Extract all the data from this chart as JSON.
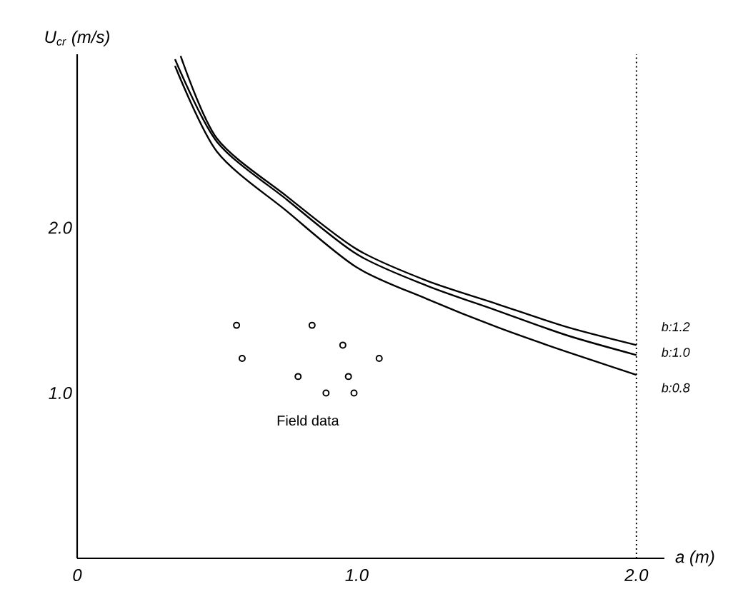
{
  "chart_data": {
    "type": "line",
    "xlabel": "a (m)",
    "ylabel": "U$_{cr}$ (m/s)",
    "xlim": [
      0,
      2.1
    ],
    "ylim": [
      0,
      3.05
    ],
    "xticks": [
      {
        "value": 0,
        "label": "0"
      },
      {
        "value": 1.0,
        "label": "1.0"
      },
      {
        "value": 2.0,
        "label": "2.0"
      }
    ],
    "yticks": [
      {
        "value": 1.0,
        "label": "1.0"
      },
      {
        "value": 2.0,
        "label": "2.0"
      }
    ],
    "series": [
      {
        "name": "b:1.2",
        "color": "#000000",
        "x": [
          0.37,
          0.5,
          0.75,
          1.0,
          1.25,
          1.5,
          1.75,
          2.0
        ],
        "values": [
          3.04,
          2.54,
          2.19,
          1.87,
          1.68,
          1.54,
          1.4,
          1.29
        ]
      },
      {
        "name": "b:1.0",
        "color": "#000000",
        "x": [
          0.35,
          0.5,
          0.75,
          1.0,
          1.25,
          1.5,
          1.75,
          2.0
        ],
        "values": [
          3.02,
          2.52,
          2.17,
          1.84,
          1.65,
          1.5,
          1.35,
          1.23
        ]
      },
      {
        "name": "b:0.8",
        "color": "#000000",
        "x": [
          0.35,
          0.5,
          0.75,
          1.0,
          1.25,
          1.5,
          1.75,
          2.0
        ],
        "values": [
          2.98,
          2.46,
          2.1,
          1.76,
          1.57,
          1.4,
          1.25,
          1.11
        ]
      },
      {
        "name": "Field data",
        "type": "scatter",
        "marker": "circle",
        "color": "#000000",
        "x": [
          0.57,
          0.59,
          0.84,
          0.95,
          0.79,
          0.97,
          1.08,
          0.89,
          0.99
        ],
        "values": [
          1.41,
          1.21,
          1.41,
          1.29,
          1.1,
          1.1,
          1.21,
          1.0,
          1.0
        ]
      }
    ],
    "ref_lines": [
      {
        "axis": "x",
        "value": 2.0,
        "line_style": "dotted",
        "color": "#000000"
      }
    ]
  }
}
